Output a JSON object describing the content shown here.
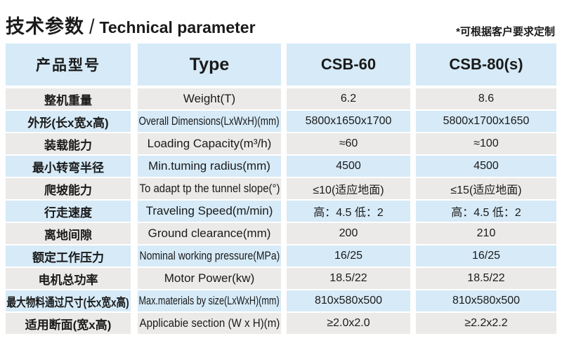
{
  "page": {
    "title_cn": "技术参数",
    "title_separator": "/",
    "title_en": "Technical parameter",
    "note": "*可根据客户要求定制"
  },
  "colors": {
    "row_blue": "#d6eaf7",
    "row_grey": "#eceae8",
    "text": "#1a1a1a",
    "background": "#ffffff"
  },
  "table": {
    "header": {
      "model_cn": "产品型号",
      "type_label": "Type",
      "col_csb60": "CSB-60",
      "col_csb80": "CSB-80(s)"
    },
    "rows": [
      {
        "cn": "整机重量",
        "en": "Weight(T)",
        "v60": "6.2",
        "v80": "8.6"
      },
      {
        "cn": "外形(长x宽x高)",
        "en": "Overall Dimensions(LxWxH)(mm)",
        "v60": "5800x1650x1700",
        "v80": "5800x1700x1650"
      },
      {
        "cn": "装载能力",
        "en": "Loading Capacity(m³/h)",
        "v60": "≈60",
        "v80": "≈100"
      },
      {
        "cn": "最小转弯半径",
        "en": "Min.tuming radius(mm)",
        "v60": "4500",
        "v80": "4500"
      },
      {
        "cn": "爬坡能力",
        "en": "To adapt tp the tunnel slope(°)",
        "v60": "≤10(适应地面)",
        "v80": "≤15(适应地面)"
      },
      {
        "cn": "行走速度",
        "en": "Traveling Speed(m/min)",
        "v60": "高：4.5 低：2",
        "v80": "高：4.5 低：2"
      },
      {
        "cn": "离地间隙",
        "en": "Ground clearance(mm)",
        "v60": "200",
        "v80": "210"
      },
      {
        "cn": "额定工作压力",
        "en": "Nominal working pressure(MPa)",
        "v60": "16/25",
        "v80": "16/25"
      },
      {
        "cn": "电机总功率",
        "en": "Motor Power(kw)",
        "v60": "18.5/22",
        "v80": "18.5/22"
      },
      {
        "cn": "最大物料通过尺寸(长x宽x高)",
        "en": "Max.materials by size(LxWxH)(mm)",
        "v60": "810x580x500",
        "v80": "810x580x500"
      },
      {
        "cn": "适用断面(宽x高)",
        "en": "Applicabie section (W x H)(m)",
        "v60": "≥2.0x2.0",
        "v80": "≥2.2x2.2"
      }
    ]
  }
}
